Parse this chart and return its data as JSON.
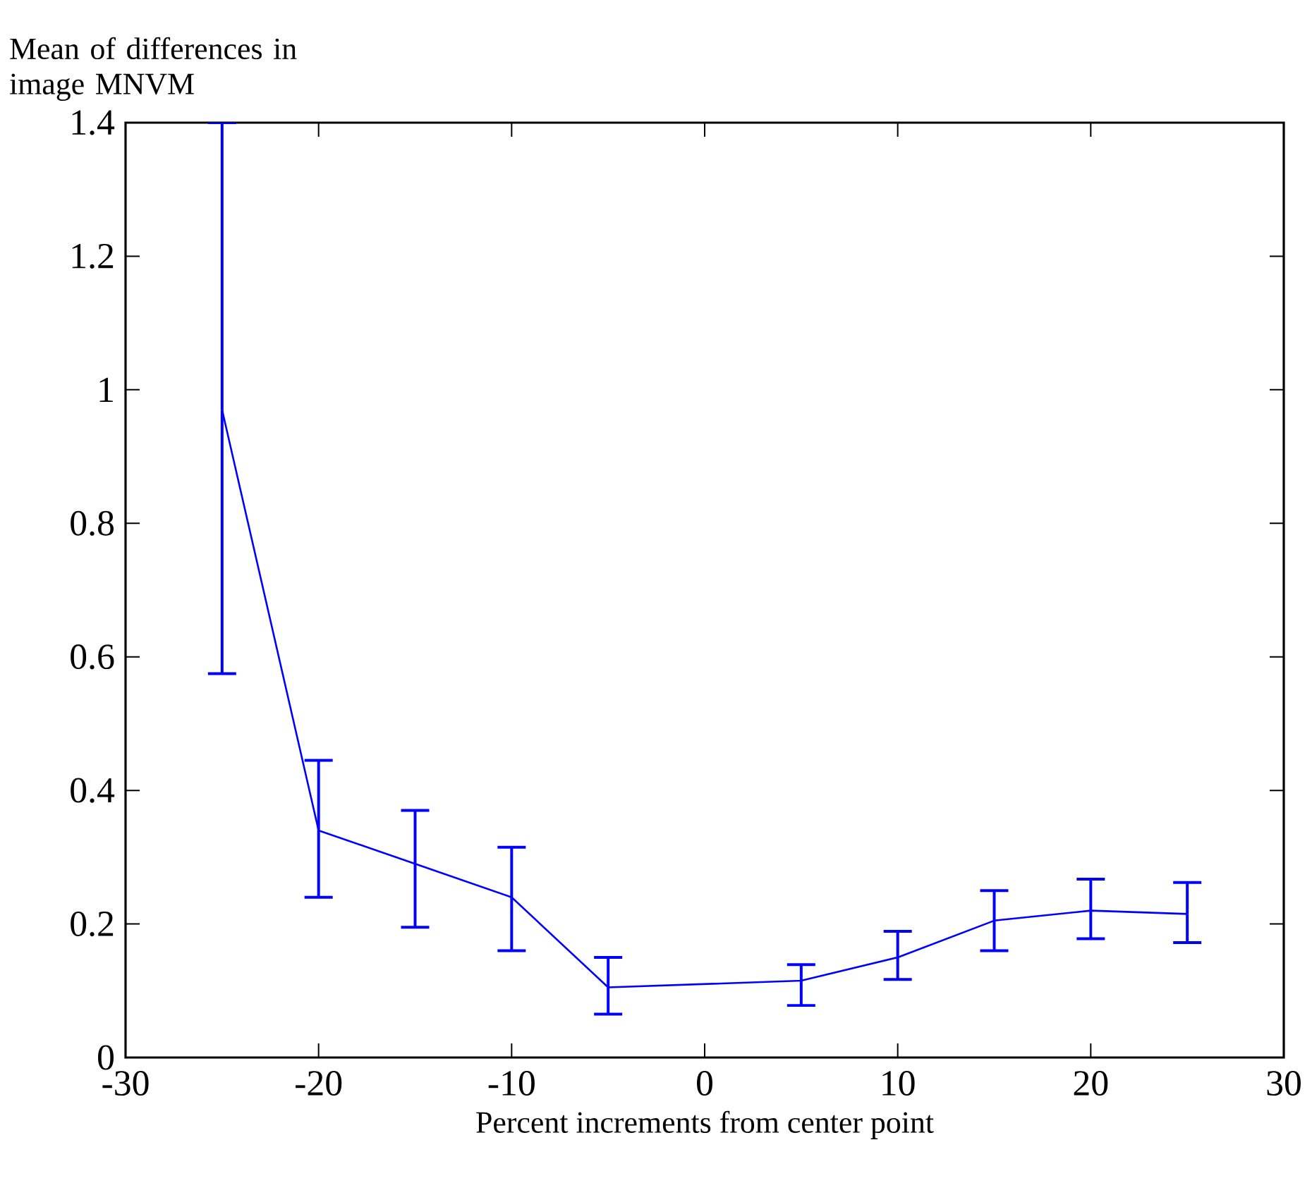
{
  "chart_data": {
    "type": "line",
    "xlabel": "Percent increments from center point",
    "ylabel": "Mean of differences in image MNVM",
    "x": [
      -25,
      -20,
      -15,
      -10,
      -5,
      0,
      5,
      10,
      15,
      20,
      25
    ],
    "series": [
      {
        "color": "#0000ff",
        "values": [
          0.97,
          0.34,
          0.29,
          0.24,
          0.105,
          0.11,
          0.115,
          0.15,
          0.205,
          0.22,
          0.215
        ],
        "errors": [
          [
            0.575,
            1.4
          ],
          [
            0.24,
            0.445
          ],
          [
            0.195,
            0.37
          ],
          [
            0.16,
            0.315
          ],
          [
            0.065,
            0.15
          ],
          null,
          [
            0.078,
            0.139
          ],
          [
            0.117,
            0.189
          ],
          [
            0.16,
            0.25
          ],
          [
            0.178,
            0.267
          ],
          [
            0.172,
            0.262
          ]
        ]
      }
    ],
    "xlim": [
      -30,
      30
    ],
    "ylim": [
      0,
      1.4
    ],
    "xticks": [
      -30,
      -20,
      -10,
      0,
      10,
      20,
      30
    ],
    "yticks": [
      0,
      0.2,
      0.4,
      0.6,
      0.8,
      1,
      1.2,
      1.4
    ]
  }
}
